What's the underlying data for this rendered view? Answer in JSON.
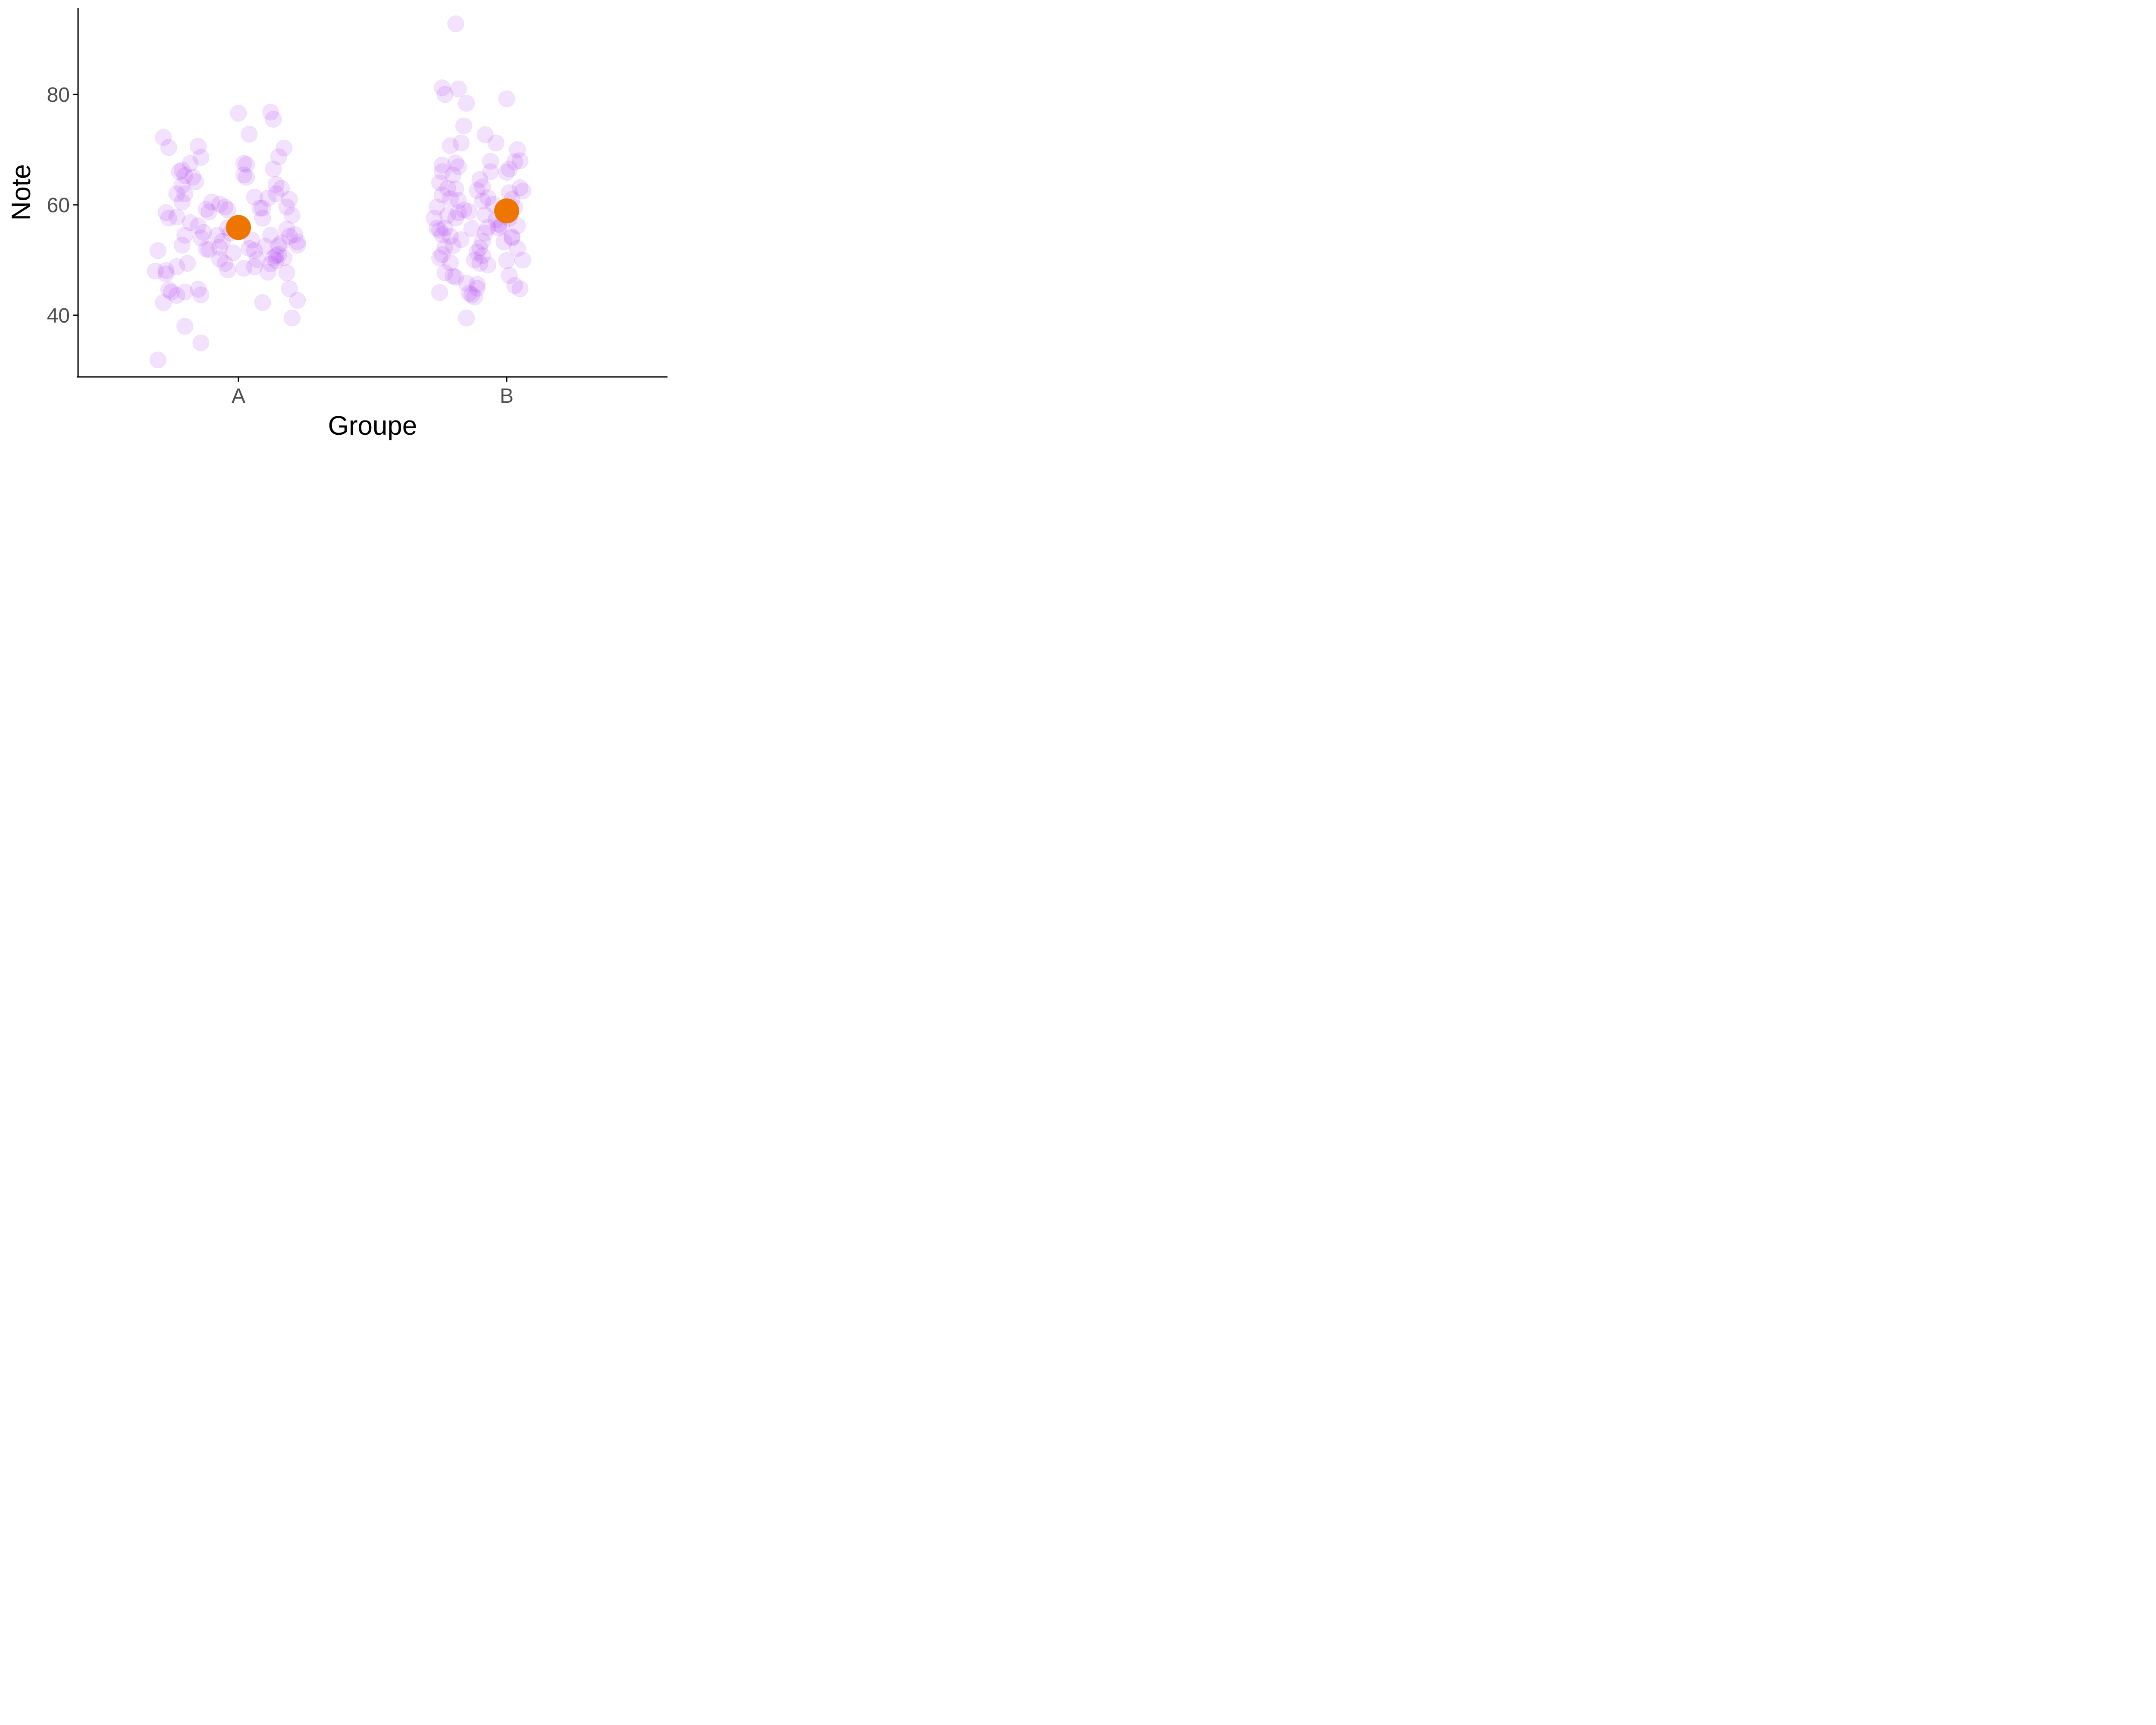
{
  "chart_data": {
    "type": "scatter",
    "xlabel": "Groupe",
    "ylabel": "Note",
    "categories": [
      "A",
      "B"
    ],
    "ylim": [
      28,
      95
    ],
    "yticks": [
      40,
      60,
      80
    ],
    "grid": false,
    "colors": {
      "points": "#a020f0",
      "mean": "#ee7600",
      "axis": "#000000",
      "tick_label": "#4d4d4d"
    },
    "means": [
      {
        "group": "A",
        "y": 55.9
      },
      {
        "group": "B",
        "y": 58.9
      }
    ],
    "points": {
      "A": [
        [
          0.72,
          72.2
        ],
        [
          0.74,
          70.4
        ],
        [
          0.77,
          62.0
        ],
        [
          0.73,
          58.6
        ],
        [
          0.74,
          57.6
        ],
        [
          0.7,
          51.7
        ],
        [
          0.69,
          48.0
        ],
        [
          0.73,
          48.1
        ],
        [
          0.73,
          47.5
        ],
        [
          0.74,
          44.6
        ],
        [
          0.72,
          42.3
        ],
        [
          0.78,
          66.0
        ],
        [
          0.79,
          63.5
        ],
        [
          0.8,
          65.3
        ],
        [
          0.82,
          67.5
        ],
        [
          0.84,
          64.2
        ],
        [
          0.79,
          60.5
        ],
        [
          0.77,
          57.8
        ],
        [
          0.8,
          54.5
        ],
        [
          0.79,
          52.7
        ],
        [
          0.77,
          48.8
        ],
        [
          0.81,
          49.4
        ],
        [
          0.75,
          44.2
        ],
        [
          0.77,
          43.6
        ],
        [
          0.8,
          44.2
        ],
        [
          0.85,
          44.7
        ],
        [
          0.86,
          43.7
        ],
        [
          0.8,
          38.0
        ],
        [
          0.86,
          35.0
        ],
        [
          0.7,
          31.9
        ],
        [
          0.79,
          66.3
        ],
        [
          0.83,
          65.0
        ],
        [
          0.85,
          70.6
        ],
        [
          0.86,
          68.6
        ],
        [
          0.8,
          62.0
        ],
        [
          0.82,
          56.8
        ],
        [
          0.85,
          56.2
        ],
        [
          0.88,
          59.2
        ],
        [
          0.89,
          58.7
        ],
        [
          0.87,
          55.0
        ],
        [
          0.86,
          54.0
        ],
        [
          0.88,
          52.0
        ],
        [
          0.92,
          54.5
        ],
        [
          0.94,
          53.4
        ],
        [
          0.96,
          55.8
        ],
        [
          0.97,
          54.9
        ],
        [
          0.89,
          51.9
        ],
        [
          0.93,
          52.3
        ],
        [
          0.95,
          59.6
        ],
        [
          0.9,
          60.5
        ],
        [
          0.93,
          60.1
        ],
        [
          0.96,
          59.1
        ],
        [
          0.93,
          50.2
        ],
        [
          0.98,
          51.3
        ],
        [
          0.95,
          49.4
        ],
        [
          0.96,
          48.2
        ],
        [
          1.0,
          76.6
        ],
        [
          1.04,
          72.8
        ],
        [
          1.02,
          67.5
        ],
        [
          1.03,
          67.3
        ],
        [
          1.02,
          65.4
        ],
        [
          1.03,
          65.0
        ],
        [
          1.06,
          61.4
        ],
        [
          1.08,
          59.4
        ],
        [
          1.05,
          53.6
        ],
        [
          1.04,
          52.1
        ],
        [
          1.06,
          51.7
        ],
        [
          1.02,
          48.5
        ],
        [
          1.06,
          48.8
        ],
        [
          1.09,
          42.3
        ],
        [
          1.12,
          76.8
        ],
        [
          1.13,
          75.5
        ],
        [
          1.13,
          66.5
        ],
        [
          1.14,
          63.7
        ],
        [
          1.11,
          61.2
        ],
        [
          1.14,
          62.0
        ],
        [
          1.16,
          63.0
        ],
        [
          1.09,
          57.6
        ],
        [
          1.12,
          54.5
        ],
        [
          1.1,
          52.5
        ],
        [
          1.13,
          50.4
        ],
        [
          1.14,
          50.8
        ],
        [
          1.15,
          51.0
        ],
        [
          1.15,
          52.6
        ],
        [
          1.16,
          53.1
        ],
        [
          1.18,
          55.6
        ],
        [
          1.19,
          54.3
        ],
        [
          1.17,
          50.4
        ],
        [
          1.14,
          49.9
        ],
        [
          1.12,
          49.3
        ],
        [
          1.15,
          68.7
        ],
        [
          1.18,
          59.6
        ],
        [
          1.2,
          58.1
        ],
        [
          1.19,
          61.0
        ],
        [
          1.21,
          54.6
        ],
        [
          1.22,
          53.3
        ],
        [
          1.22,
          52.7
        ],
        [
          1.18,
          47.7
        ],
        [
          1.19,
          44.8
        ],
        [
          1.22,
          42.7
        ],
        [
          1.2,
          39.5
        ],
        [
          1.09,
          59.4
        ],
        [
          1.07,
          50.1
        ],
        [
          1.11,
          47.8
        ],
        [
          1.17,
          70.3
        ]
      ],
      "B": [
        [
          1.76,
          81.2
        ],
        [
          1.77,
          80.0
        ],
        [
          1.82,
          81.0
        ],
        [
          1.81,
          92.8
        ],
        [
          1.85,
          78.4
        ],
        [
          1.79,
          70.7
        ],
        [
          1.83,
          71.2
        ],
        [
          1.84,
          74.3
        ],
        [
          1.81,
          67.6
        ],
        [
          1.82,
          66.9
        ],
        [
          1.8,
          65.4
        ],
        [
          1.78,
          63.0
        ],
        [
          1.76,
          61.8
        ],
        [
          1.75,
          64.0
        ],
        [
          1.76,
          66.0
        ],
        [
          1.76,
          67.2
        ],
        [
          1.81,
          62.9
        ],
        [
          1.79,
          61.1
        ],
        [
          1.74,
          59.6
        ],
        [
          1.73,
          57.6
        ],
        [
          1.74,
          55.8
        ],
        [
          1.75,
          55.4
        ],
        [
          1.76,
          54.6
        ],
        [
          1.77,
          55.8
        ],
        [
          1.79,
          54.3
        ],
        [
          1.78,
          58.1
        ],
        [
          1.82,
          58.6
        ],
        [
          1.81,
          57.6
        ],
        [
          1.77,
          52.4
        ],
        [
          1.76,
          51.0
        ],
        [
          1.75,
          50.4
        ],
        [
          1.79,
          49.5
        ],
        [
          1.8,
          47.1
        ],
        [
          1.81,
          46.9
        ],
        [
          1.77,
          47.7
        ],
        [
          1.75,
          44.1
        ],
        [
          1.82,
          60.8
        ],
        [
          1.84,
          59.1
        ],
        [
          1.83,
          53.7
        ],
        [
          1.8,
          52.6
        ],
        [
          1.86,
          58.8
        ],
        [
          1.87,
          55.7
        ],
        [
          1.85,
          45.8
        ],
        [
          1.86,
          44.0
        ],
        [
          1.88,
          43.3
        ],
        [
          1.87,
          43.7
        ],
        [
          1.89,
          45.6
        ],
        [
          1.88,
          50.0
        ],
        [
          1.89,
          51.4
        ],
        [
          1.91,
          50.8
        ],
        [
          1.9,
          52.2
        ],
        [
          1.91,
          53.4
        ],
        [
          1.92,
          54.9
        ],
        [
          1.93,
          55.9
        ],
        [
          1.92,
          58.2
        ],
        [
          1.91,
          60.7
        ],
        [
          1.89,
          62.6
        ],
        [
          1.9,
          64.6
        ],
        [
          1.91,
          63.3
        ],
        [
          1.93,
          61.3
        ],
        [
          1.95,
          60.1
        ],
        [
          1.96,
          57.3
        ],
        [
          1.97,
          56.5
        ],
        [
          1.97,
          55.8
        ],
        [
          1.93,
          49.1
        ],
        [
          1.85,
          39.5
        ],
        [
          1.9,
          49.4
        ],
        [
          1.89,
          44.9
        ],
        [
          1.94,
          66.0
        ],
        [
          1.94,
          67.9
        ],
        [
          1.96,
          71.2
        ],
        [
          1.92,
          72.7
        ],
        [
          2.0,
          65.9
        ],
        [
          2.01,
          66.5
        ],
        [
          2.03,
          67.8
        ],
        [
          2.04,
          70.0
        ],
        [
          2.05,
          68.0
        ],
        [
          2.0,
          79.2
        ],
        [
          2.01,
          62.2
        ],
        [
          2.02,
          61.0
        ],
        [
          2.03,
          59.5
        ],
        [
          2.04,
          56.2
        ],
        [
          2.02,
          54.2
        ],
        [
          2.04,
          52.1
        ],
        [
          2.06,
          50.0
        ],
        [
          2.03,
          45.4
        ],
        [
          2.05,
          44.8
        ],
        [
          2.01,
          57.6
        ],
        [
          2.02,
          54.0
        ],
        [
          1.99,
          53.3
        ],
        [
          2.0,
          49.9
        ],
        [
          1.98,
          56.2
        ],
        [
          2.05,
          63.1
        ],
        [
          2.06,
          62.5
        ],
        [
          2.01,
          47.2
        ]
      ]
    }
  }
}
